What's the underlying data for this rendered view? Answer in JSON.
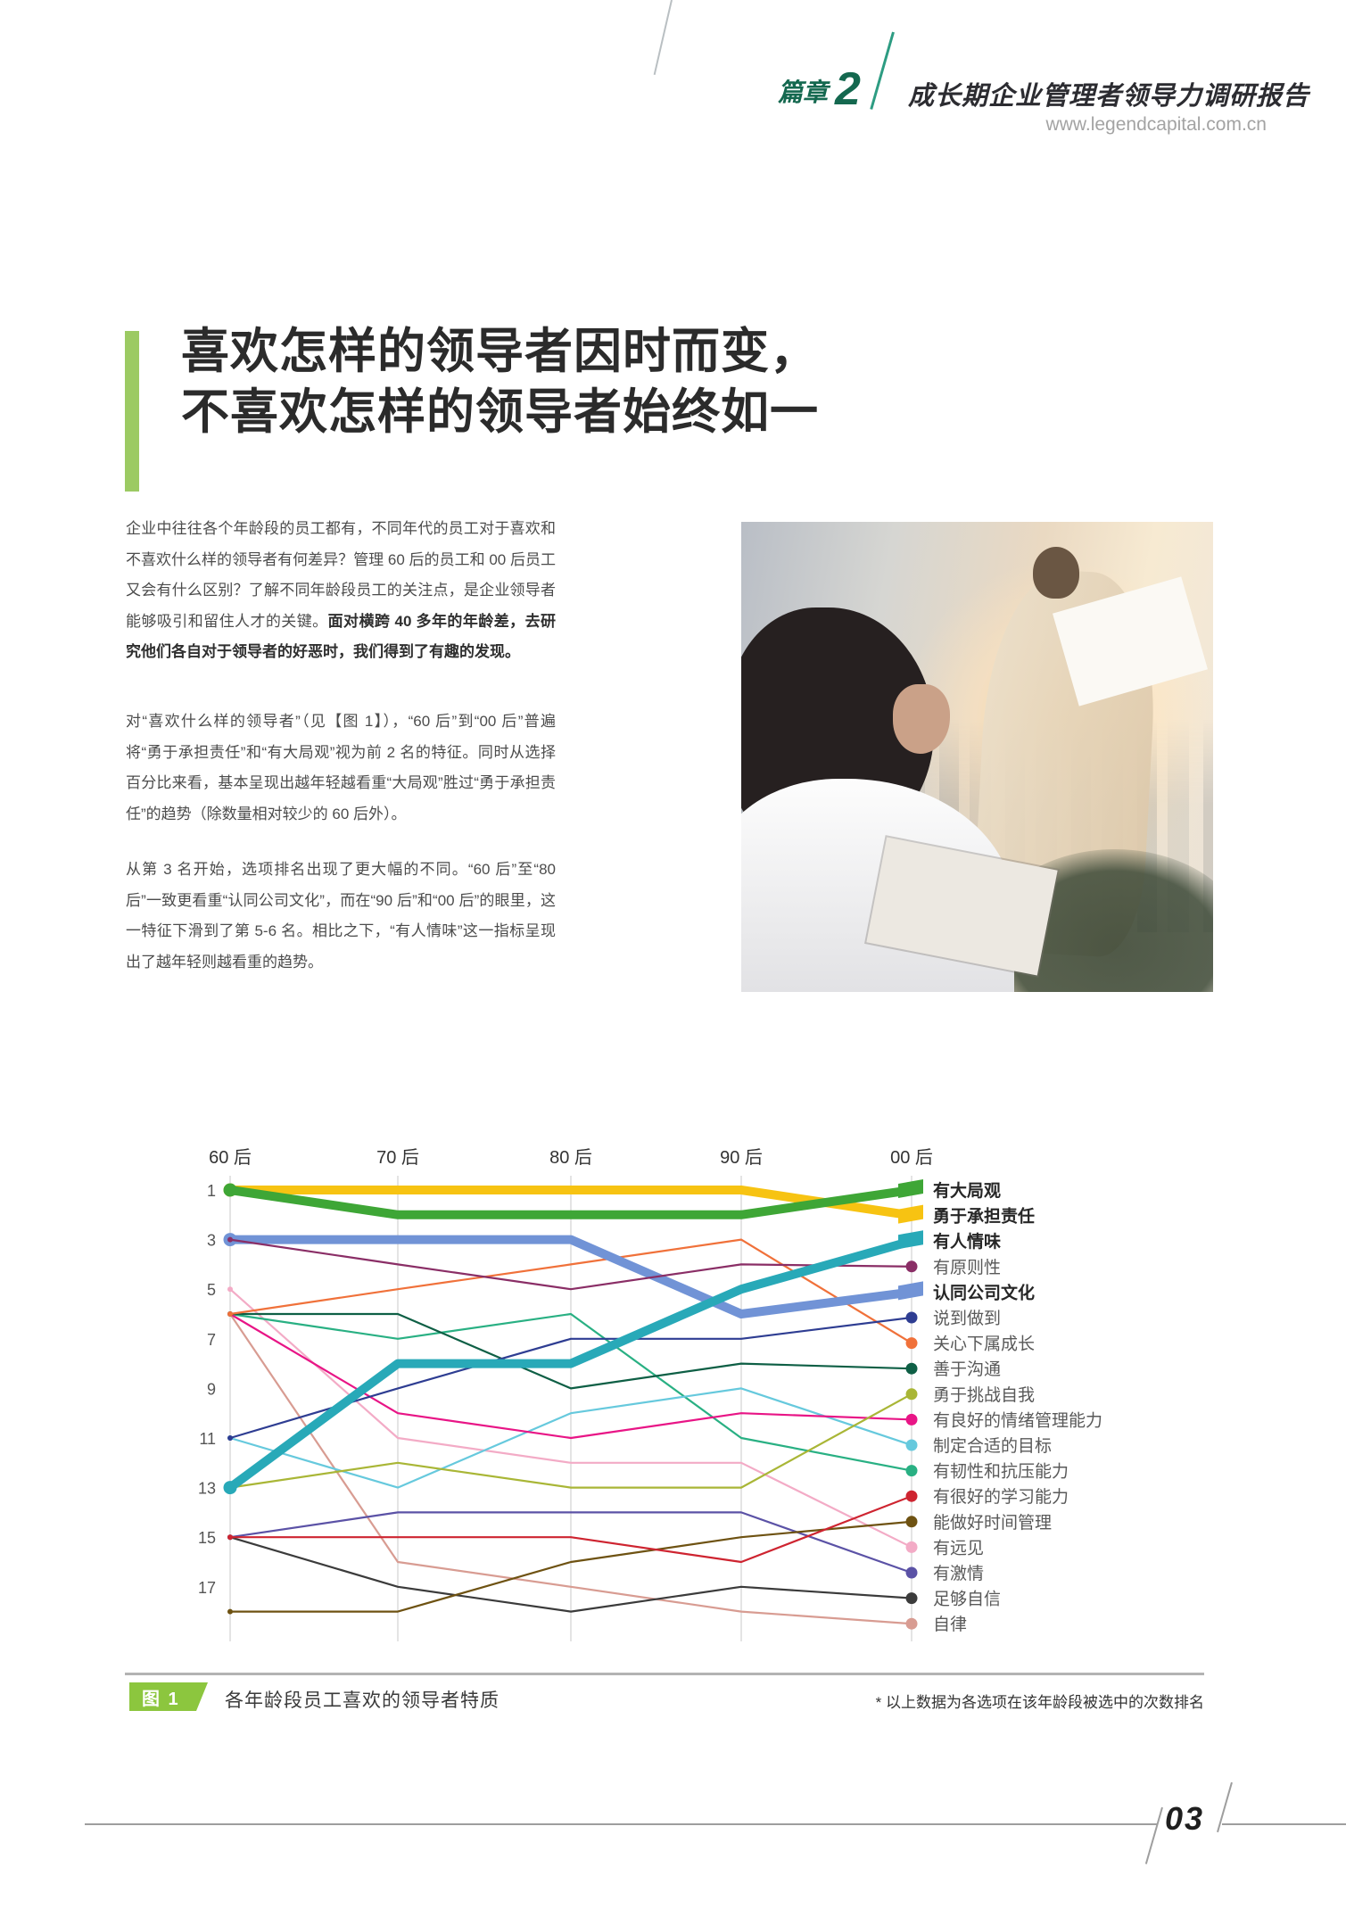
{
  "header": {
    "chapter_label": "篇章",
    "chapter_number": "2",
    "report_title": "成长期企业管理者领导力调研报告",
    "website": "www.legendcapital.com.cn"
  },
  "headline": {
    "line1": "喜欢怎样的领导者因时而变，",
    "line2": "不喜欢怎样的领导者始终如一"
  },
  "paragraphs": [
    {
      "segments": [
        {
          "text": "企业中往往各个年龄段的员工都有，不同年代的员工对于喜欢和不喜欢什么样的领导者有何差异？管理 60 后的员工和 00 后员工又会有什么区别？了解不同年龄段员工的关注点，是企业领导者能够吸引和留住人才的关键。",
          "bold": false
        },
        {
          "text": "面对横跨 40 多年的年龄差，去研究他们各自对于领导者的好恶时，我们得到了有趣的发现。",
          "bold": true
        }
      ]
    },
    {
      "segments": [
        {
          "text": "对“喜欢什么样的领导者”（见【图 1】），“60 后”到“00 后”普遍将“勇于承担责任”和“有大局观”视为前 2 名的特征。同时从选择百分比来看，基本呈现出越年轻越看重“大局观”胜过“勇于承担责任”的趋势（除数量相对较少的 60 后外）。",
          "bold": false
        }
      ]
    },
    {
      "segments": [
        {
          "text": "从第 3 名开始，选项排名出现了更大幅的不同。“60 后”至“80 后”一致更看重“认同公司文化”，而在“90 后”和“00 后”的眼里，这一特征下滑到了第 5-6 名。相比之下，“有人情味”这一指标呈现出了越年轻则越看重的趋势。",
          "bold": false
        }
      ]
    }
  ],
  "chart_data": {
    "type": "line",
    "subtype": "bump-ranking",
    "categories": [
      "60 后",
      "70 后",
      "80 后",
      "90 后",
      "00 后"
    ],
    "rank_axis_ticks": [
      1,
      3,
      5,
      7,
      9,
      11,
      13,
      15,
      17
    ],
    "rank_axis_inverted": true,
    "rank_range": [
      1,
      18
    ],
    "values_are": "rank of times each option was chosen within each age group (1 = most chosen)",
    "legend_position": "right",
    "grid": "vertical-only",
    "series": [
      {
        "name": "有大局观",
        "color": "#3ea636",
        "bold": true,
        "ranks": [
          1,
          2,
          2,
          2,
          1
        ]
      },
      {
        "name": "勇于承担责任",
        "color": "#f7c312",
        "bold": true,
        "ranks": [
          1,
          1,
          1,
          1,
          2
        ]
      },
      {
        "name": "有人情味",
        "color": "#28a9b8",
        "bold": true,
        "ranks": [
          13,
          8,
          8,
          5,
          3
        ]
      },
      {
        "name": "有原则性",
        "color": "#8a2e66",
        "bold": false,
        "ranks": [
          3,
          4,
          5,
          4,
          4
        ]
      },
      {
        "name": "认同公司文化",
        "color": "#7193d6",
        "bold": true,
        "ranks": [
          3,
          3,
          3,
          6,
          5
        ]
      },
      {
        "name": "说到做到",
        "color": "#2e3d92",
        "bold": false,
        "ranks": [
          11,
          9,
          7,
          7,
          6
        ]
      },
      {
        "name": "关心下属成长",
        "color": "#f0713a",
        "bold": false,
        "ranks": [
          6,
          5,
          4,
          3,
          7
        ]
      },
      {
        "name": "善于沟通",
        "color": "#0e5f45",
        "bold": false,
        "ranks": [
          6,
          6,
          9,
          8,
          8
        ]
      },
      {
        "name": "勇于挑战自我",
        "color": "#a9b636",
        "bold": false,
        "ranks": [
          13,
          12,
          13,
          13,
          9
        ]
      },
      {
        "name": "有良好的情绪管理能力",
        "color": "#e81586",
        "bold": false,
        "ranks": [
          6,
          10,
          11,
          10,
          10
        ]
      },
      {
        "name": "制定合适的目标",
        "color": "#66c9dd",
        "bold": false,
        "ranks": [
          11,
          13,
          10,
          9,
          11
        ]
      },
      {
        "name": "有韧性和抗压能力",
        "color": "#29b083",
        "bold": false,
        "ranks": [
          6,
          7,
          6,
          11,
          12
        ]
      },
      {
        "name": "有很好的学习能力",
        "color": "#ce2430",
        "bold": false,
        "ranks": [
          15,
          15,
          15,
          16,
          13
        ]
      },
      {
        "name": "能做好时间管理",
        "color": "#6e5212",
        "bold": false,
        "ranks": [
          18,
          18,
          16,
          15,
          14
        ]
      },
      {
        "name": "有远见",
        "color": "#f3abc6",
        "bold": false,
        "ranks": [
          5,
          11,
          12,
          12,
          15
        ]
      },
      {
        "name": "有激情",
        "color": "#5b52a6",
        "bold": false,
        "ranks": [
          15,
          14,
          14,
          14,
          16
        ]
      },
      {
        "name": "足够自信",
        "color": "#3b3b3b",
        "bold": false,
        "ranks": [
          15,
          17,
          18,
          17,
          17
        ]
      },
      {
        "name": "自律",
        "color": "#d89c92",
        "bold": false,
        "ranks": [
          6,
          16,
          17,
          18,
          18
        ]
      }
    ]
  },
  "figure_caption": {
    "badge": "图 1",
    "title": "各年龄段员工喜欢的领导者特质",
    "note": "* 以上数据为各选项在该年龄段被选中的次数排名"
  },
  "footer": {
    "page_number": "03"
  }
}
